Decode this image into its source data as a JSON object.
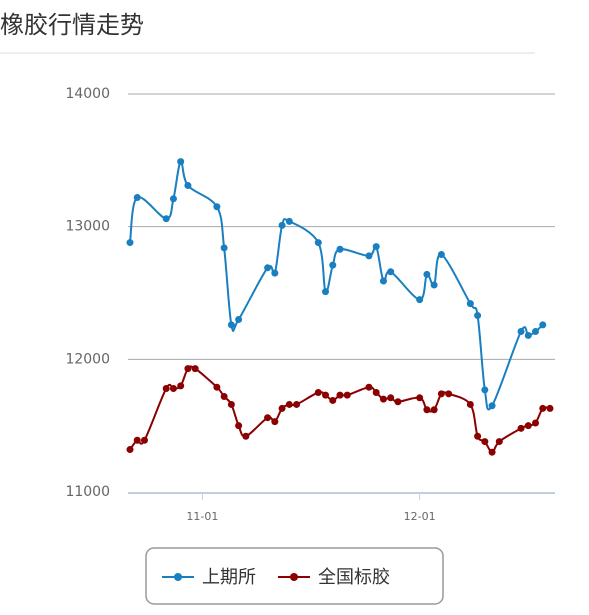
{
  "chart_data": {
    "type": "line",
    "title": "橡胶行情走势",
    "xlim": [
      "10-22",
      "12-19"
    ],
    "xticks": [
      "11-01",
      "12-01"
    ],
    "ylim": [
      11000,
      14000
    ],
    "yticks": [
      11000,
      12000,
      13000,
      14000
    ],
    "grid": true,
    "series": [
      {
        "name": "上期所",
        "color": "#1a7fc1",
        "x": [
          "10-22",
          "10-23",
          "10-27",
          "10-28",
          "10-29",
          "10-30",
          "11-03",
          "11-04",
          "11-05",
          "11-06",
          "11-10",
          "11-11",
          "11-12",
          "11-13",
          "11-17",
          "11-18",
          "11-19",
          "11-20",
          "11-24",
          "11-25",
          "11-26",
          "11-27",
          "12-01",
          "12-02",
          "12-03",
          "12-04",
          "12-08",
          "12-09",
          "12-10",
          "12-11",
          "12-15",
          "12-16",
          "12-17",
          "12-18"
        ],
        "values": [
          12880,
          13220,
          13060,
          13210,
          13490,
          13310,
          13150,
          12840,
          12260,
          12300,
          12690,
          12650,
          13010,
          13040,
          12880,
          12510,
          12710,
          12830,
          12780,
          12850,
          12590,
          12660,
          12450,
          12640,
          12560,
          12790,
          12420,
          12330,
          11770,
          11650,
          12210,
          12180,
          12210,
          12260
        ]
      },
      {
        "name": "全国标胶",
        "color": "#8b0000",
        "x": [
          "10-22",
          "10-23",
          "10-24",
          "10-27",
          "10-28",
          "10-29",
          "10-30",
          "10-31",
          "11-03",
          "11-04",
          "11-05",
          "11-06",
          "11-07",
          "11-10",
          "11-11",
          "11-12",
          "11-13",
          "11-14",
          "11-17",
          "11-18",
          "11-19",
          "11-20",
          "11-21",
          "11-24",
          "11-25",
          "11-26",
          "11-27",
          "11-28",
          "12-01",
          "12-02",
          "12-03",
          "12-04",
          "12-05",
          "12-08",
          "12-09",
          "12-10",
          "12-11",
          "12-12",
          "12-15",
          "12-16",
          "12-17",
          "12-18",
          "12-19"
        ],
        "values": [
          11320,
          11390,
          11390,
          11780,
          11780,
          11800,
          11930,
          11930,
          11790,
          11720,
          11660,
          11500,
          11420,
          11560,
          11530,
          11630,
          11660,
          11660,
          11750,
          11730,
          11690,
          11730,
          11730,
          11790,
          11750,
          11700,
          11710,
          11680,
          11710,
          11620,
          11620,
          11740,
          11740,
          11660,
          11420,
          11380,
          11300,
          11380,
          11480,
          11500,
          11520,
          11630,
          11630
        ]
      }
    ]
  }
}
